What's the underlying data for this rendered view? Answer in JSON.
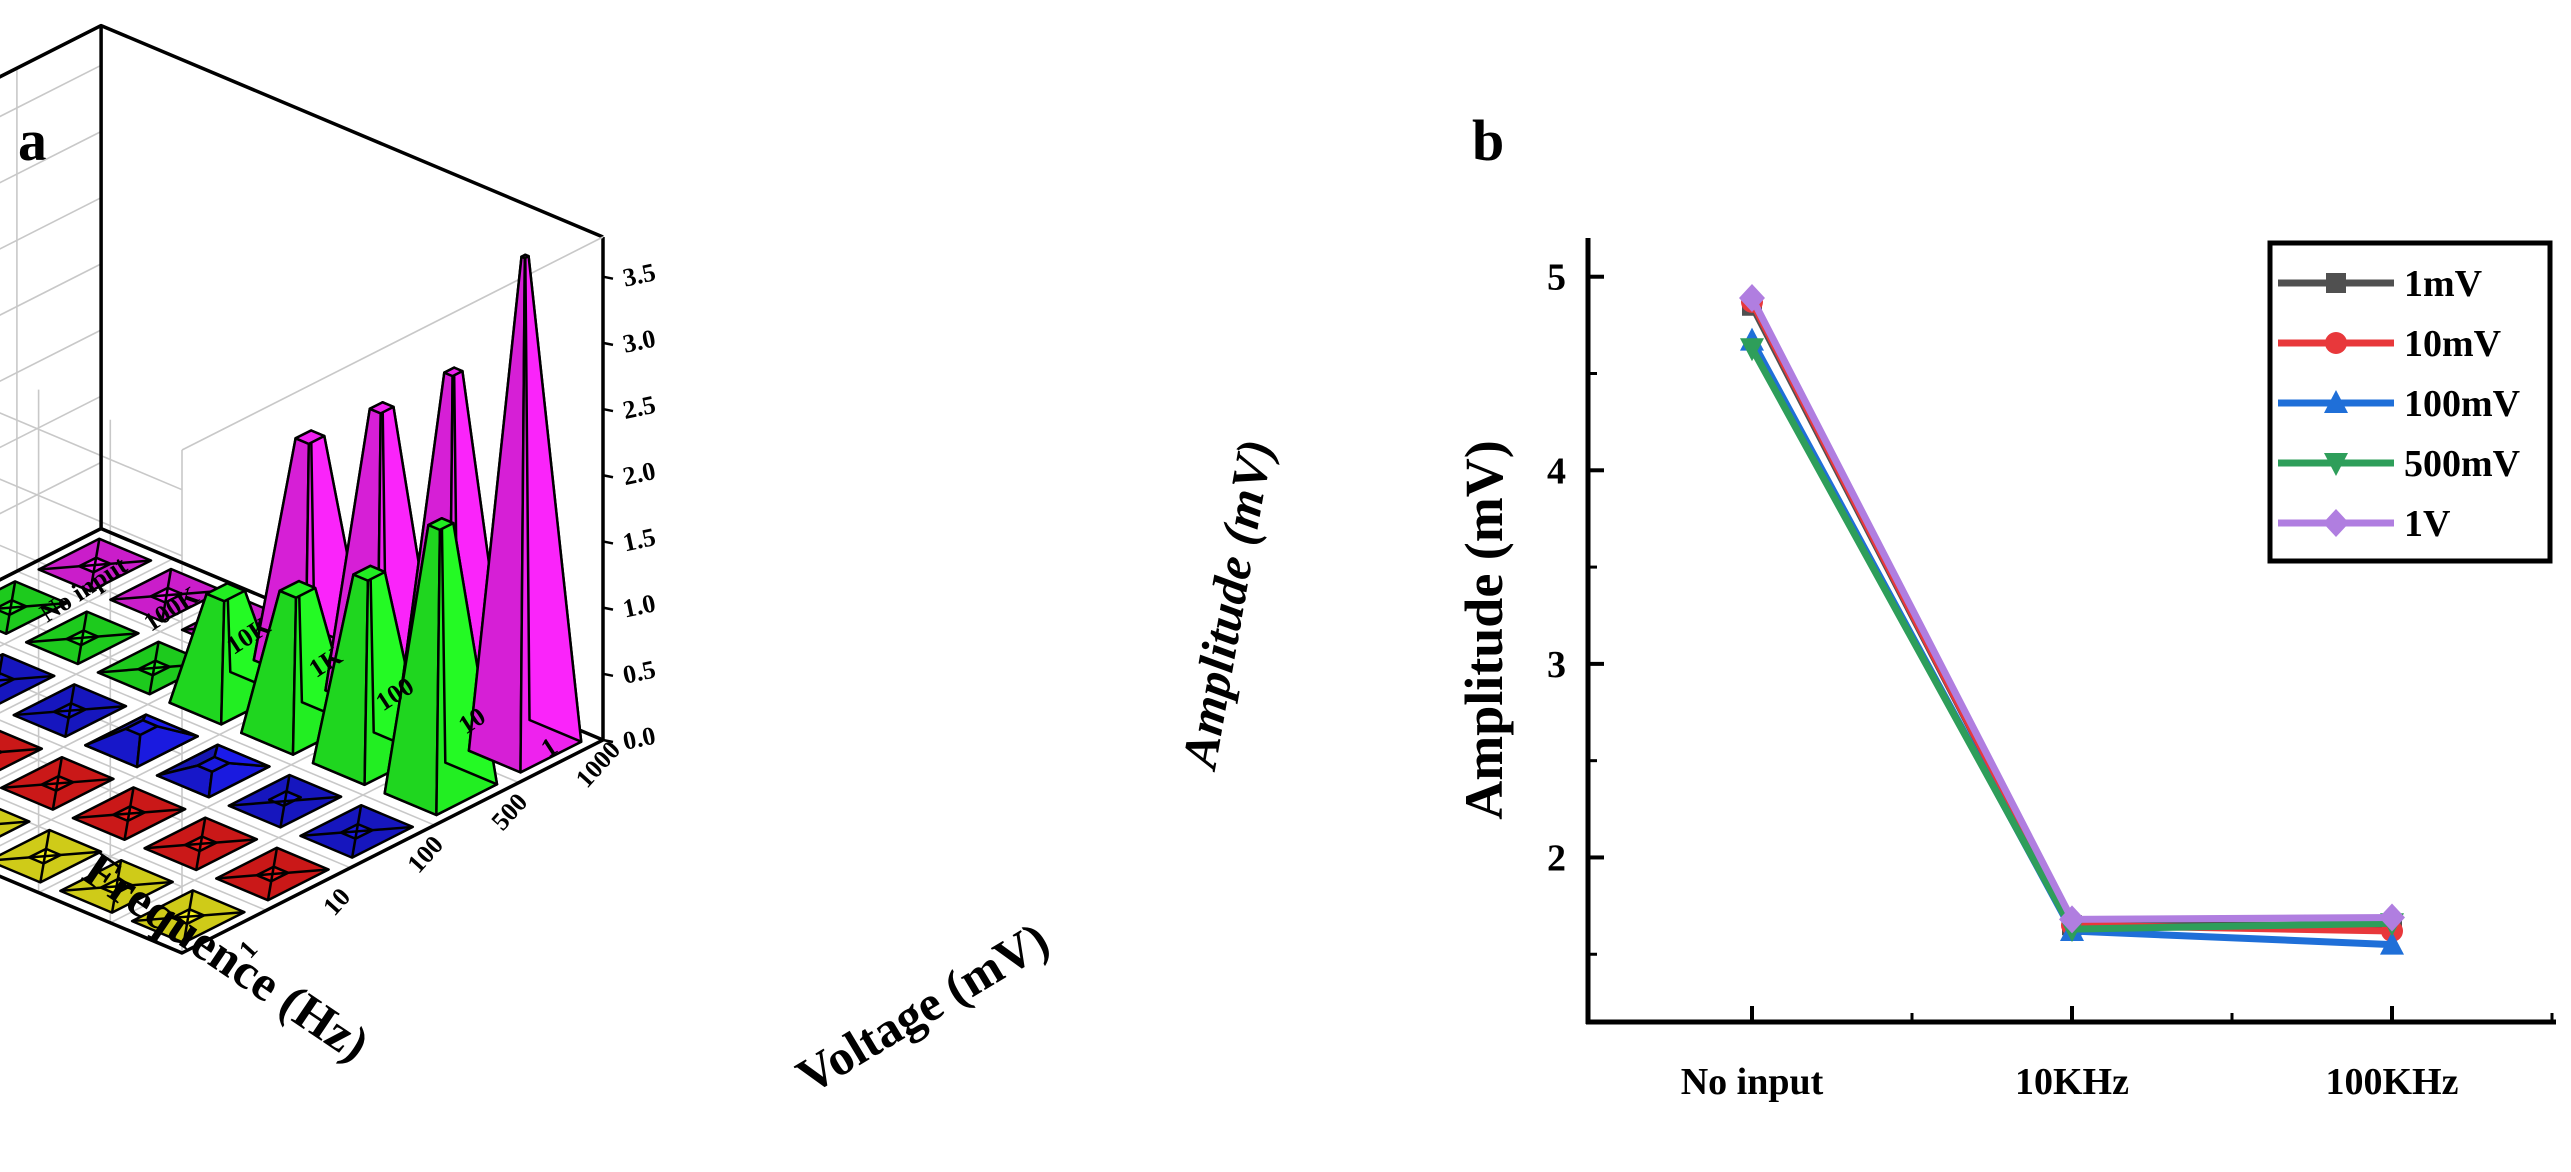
{
  "panels": {
    "a": "a",
    "b": "b"
  },
  "colors": {
    "yellow": "#f4ef1c",
    "red": "#ee1c1c",
    "blue": "#1a1adf",
    "green": "#22ee22",
    "magenta": "#ee22ee",
    "s1": "#505050",
    "s2": "#e8383b",
    "s3": "#1f6fd8",
    "s4": "#2e9e5a",
    "s5": "#b07ee0"
  },
  "chart_data": [
    {
      "type": "bar3d",
      "title": "",
      "xlabel": "Frequence (Hz)",
      "ylabel": "Voltage (mV)",
      "zlabel": "Amplitude (mV)",
      "frequency_ticks": [
        "1",
        "10",
        "100",
        "1K",
        "10K",
        "100K",
        "No input"
      ],
      "voltage_ticks": [
        "1",
        "10",
        "100",
        "500",
        "1000"
      ],
      "z_ticks": [
        "0.0",
        "0.5",
        "1.0",
        "1.5",
        "2.0",
        "2.5",
        "3.0",
        "3.5"
      ],
      "zlim": [
        0,
        3.8
      ],
      "series": [
        {
          "name": "1",
          "color": "yellow",
          "values": [
            0,
            0,
            0,
            0,
            0,
            0,
            0
          ]
        },
        {
          "name": "10",
          "color": "red",
          "values": [
            0,
            0,
            0,
            0,
            0,
            0,
            0
          ]
        },
        {
          "name": "100",
          "color": "blue",
          "values": [
            0,
            0.02,
            0.05,
            0.1,
            0,
            0,
            0
          ]
        },
        {
          "name": "500",
          "color": "green",
          "values": [
            2.0,
            1.4,
            1.05,
            0.8,
            0,
            0,
            0
          ]
        },
        {
          "name": "1000",
          "color": "magenta",
          "values": [
            3.7,
            2.6,
            2.1,
            1.65,
            0,
            0,
            0
          ]
        }
      ]
    },
    {
      "type": "line",
      "title": "",
      "xlabel": "",
      "ylabel": "Amplitude (mV)",
      "categories": [
        "No input",
        "10KHz",
        "100KHz"
      ],
      "yticks": [
        "2",
        "3",
        "4",
        "5"
      ],
      "ylim": [
        1.15,
        5.2
      ],
      "series": [
        {
          "name": "1mV",
          "color": "s1",
          "marker": "square",
          "values": [
            4.85,
            1.65,
            1.65
          ]
        },
        {
          "name": "10mV",
          "color": "s2",
          "marker": "circle",
          "values": [
            4.87,
            1.65,
            1.62
          ]
        },
        {
          "name": "100mV",
          "color": "s3",
          "marker": "triangle-up",
          "values": [
            4.67,
            1.62,
            1.55
          ]
        },
        {
          "name": "500mV",
          "color": "s4",
          "marker": "triangle-down",
          "values": [
            4.63,
            1.63,
            1.66
          ]
        },
        {
          "name": "1V",
          "color": "s5",
          "marker": "diamond",
          "values": [
            4.89,
            1.68,
            1.69
          ]
        }
      ]
    }
  ]
}
